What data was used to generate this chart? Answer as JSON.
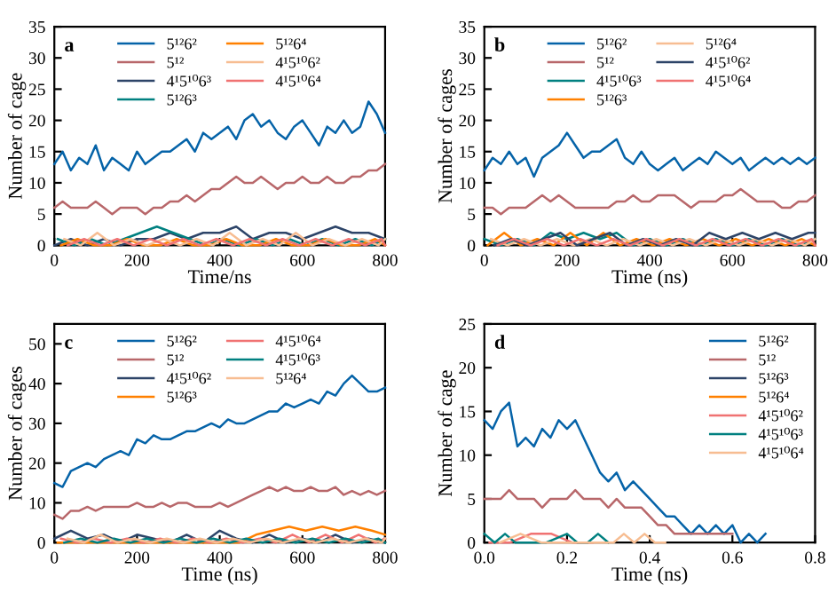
{
  "chart_data": [
    {
      "type": "line",
      "annotations": [
        "a"
      ],
      "xlabel": "Time/ns",
      "ylabel": "Number of cage",
      "xlim": [
        0,
        800
      ],
      "xticks": [
        0,
        200,
        400,
        600,
        800
      ],
      "ylim": [
        0,
        35
      ],
      "yticks": [
        0,
        5,
        10,
        15,
        20,
        25,
        30,
        35
      ],
      "grid": false,
      "legend": "top",
      "x": [
        0,
        20,
        40,
        60,
        80,
        100,
        120,
        140,
        160,
        180,
        200,
        220,
        240,
        260,
        280,
        300,
        320,
        340,
        360,
        380,
        400,
        420,
        440,
        460,
        480,
        500,
        520,
        540,
        560,
        580,
        600,
        620,
        640,
        660,
        680,
        700,
        720,
        740,
        760,
        780,
        800
      ],
      "series": [
        {
          "name": "5¹²6²",
          "color": "#0563a8",
          "values": [
            13,
            15,
            12,
            14,
            13,
            16,
            12,
            14,
            13,
            12,
            15,
            13,
            14,
            15,
            15,
            16,
            17,
            15,
            18,
            17,
            18,
            19,
            17,
            20,
            21,
            19,
            20,
            18,
            17,
            19,
            20,
            18,
            16,
            19,
            18,
            20,
            18,
            19,
            23,
            21,
            18
          ]
        },
        {
          "name": "5¹²",
          "color": "#b8676a",
          "values": [
            6,
            7,
            6,
            6,
            6,
            7,
            6,
            5,
            6,
            6,
            6,
            5,
            6,
            6,
            7,
            7,
            8,
            7,
            8,
            9,
            9,
            10,
            11,
            10,
            10,
            11,
            10,
            9,
            10,
            10,
            11,
            10,
            10,
            11,
            10,
            10,
            11,
            11,
            12,
            12,
            13
          ]
        },
        {
          "name": "4¹5¹⁰6³",
          "color": "#2d4468",
          "x": [
            0,
            40,
            80,
            120,
            160,
            200,
            240,
            280,
            320,
            360,
            400,
            440,
            480,
            520,
            560,
            600,
            640,
            680,
            720,
            760,
            800
          ],
          "values": [
            0,
            1,
            0,
            1,
            0,
            1,
            1,
            2,
            1,
            2,
            2,
            3,
            1,
            2,
            2,
            1,
            2,
            3,
            2,
            2,
            1
          ]
        },
        {
          "name": "5¹²6³",
          "color": "#008080",
          "x": [
            8,
            48,
            88,
            128,
            168,
            208,
            248,
            288,
            328,
            368,
            408,
            448,
            488,
            528,
            568,
            608,
            648,
            688,
            728,
            768,
            800
          ],
          "values": [
            1,
            0,
            1,
            0,
            1,
            2,
            3,
            2,
            1,
            0,
            1,
            0,
            1,
            0,
            1,
            0,
            1,
            0,
            1,
            0,
            1
          ]
        },
        {
          "name": "5¹²6⁴",
          "color": "#ff8000",
          "x": [
            16,
            56,
            96,
            136,
            176,
            216,
            256,
            296,
            336,
            376,
            416,
            456,
            496,
            536,
            576,
            616,
            656,
            696,
            736,
            776,
            800
          ],
          "values": [
            0,
            1,
            0,
            0,
            1,
            0,
            0,
            1,
            0,
            0,
            1,
            0,
            0,
            1,
            0,
            0,
            1,
            0,
            0,
            1,
            0
          ]
        },
        {
          "name": "4¹5¹⁰6²",
          "color": "#f7bd92",
          "x": [
            24,
            64,
            104,
            144,
            184,
            224,
            264,
            304,
            344,
            384,
            424,
            464,
            504,
            544,
            584,
            624,
            664,
            704,
            744,
            784,
            800
          ],
          "values": [
            1,
            0,
            2,
            0,
            1,
            0,
            1,
            0,
            1,
            0,
            2,
            0,
            1,
            0,
            2,
            0,
            1,
            0,
            1,
            0,
            1
          ]
        },
        {
          "name": "4¹5¹⁰6⁴",
          "color": "#f07272",
          "x": [
            32,
            72,
            112,
            152,
            192,
            232,
            272,
            312,
            352,
            392,
            432,
            472,
            512,
            552,
            592,
            632,
            672,
            712,
            752,
            792,
            800
          ],
          "values": [
            0,
            1,
            0,
            1,
            0,
            1,
            0,
            1,
            0,
            1,
            0,
            1,
            0,
            1,
            0,
            1,
            0,
            1,
            0,
            1,
            0
          ]
        }
      ]
    },
    {
      "type": "line",
      "annotations": [
        "b"
      ],
      "xlabel": "Time (ns)",
      "ylabel": "Number of cages",
      "xlim": [
        0,
        800
      ],
      "xticks": [
        0,
        200,
        400,
        600,
        800
      ],
      "ylim": [
        0,
        35
      ],
      "yticks": [
        0,
        5,
        10,
        15,
        20,
        25,
        30,
        35
      ],
      "grid": false,
      "legend": "top",
      "x": [
        0,
        20,
        40,
        60,
        80,
        100,
        120,
        140,
        160,
        180,
        200,
        220,
        240,
        260,
        280,
        300,
        320,
        340,
        360,
        380,
        400,
        420,
        440,
        460,
        480,
        500,
        520,
        540,
        560,
        580,
        600,
        620,
        640,
        660,
        680,
        700,
        720,
        740,
        760,
        780,
        800
      ],
      "series": [
        {
          "name": "5¹²6²",
          "color": "#0563a8",
          "values": [
            12,
            14,
            13,
            15,
            13,
            14,
            11,
            14,
            15,
            16,
            18,
            16,
            14,
            15,
            15,
            16,
            17,
            14,
            13,
            15,
            13,
            12,
            13,
            14,
            12,
            13,
            14,
            13,
            15,
            14,
            13,
            14,
            12,
            13,
            14,
            13,
            14,
            13,
            14,
            13,
            14
          ]
        },
        {
          "name": "5¹²",
          "color": "#b8676a",
          "values": [
            6,
            6,
            5,
            6,
            6,
            6,
            7,
            8,
            7,
            8,
            7,
            6,
            6,
            6,
            6,
            6,
            7,
            7,
            8,
            7,
            7,
            8,
            8,
            8,
            7,
            6,
            7,
            7,
            7,
            8,
            8,
            9,
            8,
            7,
            7,
            7,
            6,
            6,
            7,
            7,
            8
          ]
        },
        {
          "name": "4¹5¹⁰6³",
          "color": "#008080",
          "x": [
            0,
            40,
            80,
            120,
            160,
            200,
            240,
            280,
            320,
            360,
            400,
            440,
            480,
            520,
            560,
            600,
            640,
            680,
            720,
            760,
            800
          ],
          "values": [
            1,
            0,
            1,
            0,
            2,
            1,
            2,
            1,
            2,
            0,
            1,
            0,
            1,
            0,
            1,
            0,
            1,
            0,
            1,
            0,
            1
          ]
        },
        {
          "name": "5¹²6³",
          "color": "#ff8000",
          "x": [
            8,
            48,
            88,
            128,
            168,
            208,
            248,
            288,
            328,
            368,
            408,
            448,
            488,
            528,
            568,
            608,
            648,
            688,
            728,
            768,
            800
          ],
          "values": [
            0,
            2,
            0,
            1,
            0,
            2,
            0,
            2,
            0,
            1,
            0,
            1,
            0,
            1,
            0,
            1,
            0,
            1,
            0,
            1,
            0
          ]
        },
        {
          "name": "5¹²6⁴",
          "color": "#f7bd92",
          "x": [
            16,
            56,
            96,
            136,
            176,
            216,
            256,
            296,
            336,
            376,
            416,
            456,
            496,
            536,
            576,
            616,
            656,
            696,
            736,
            776,
            800
          ],
          "values": [
            1,
            0,
            1,
            0,
            1,
            0,
            1,
            0,
            1,
            0,
            1,
            0,
            1,
            0,
            1,
            0,
            1,
            0,
            1,
            0,
            1
          ]
        },
        {
          "name": "4¹5¹⁰6²",
          "color": "#2d4468",
          "x": [
            24,
            64,
            104,
            144,
            184,
            224,
            264,
            304,
            344,
            384,
            424,
            464,
            504,
            544,
            584,
            624,
            664,
            704,
            744,
            784,
            800
          ],
          "values": [
            0,
            1,
            0,
            1,
            2,
            0,
            1,
            2,
            0,
            1,
            0,
            1,
            0,
            2,
            1,
            2,
            1,
            2,
            1,
            2,
            2
          ]
        },
        {
          "name": "4¹5¹⁰6⁴",
          "color": "#f07272",
          "x": [
            32,
            72,
            112,
            152,
            192,
            232,
            272,
            312,
            352,
            392,
            432,
            472,
            512,
            552,
            592,
            632,
            672,
            712,
            752,
            792,
            800
          ],
          "values": [
            0,
            1,
            0,
            1,
            0,
            1,
            0,
            1,
            0,
            1,
            0,
            1,
            0,
            1,
            0,
            1,
            0,
            1,
            0,
            1,
            0
          ]
        }
      ]
    },
    {
      "type": "line",
      "annotations": [
        "c"
      ],
      "xlabel": "Time (ns)",
      "ylabel": "Number of cages",
      "xlim": [
        0,
        800
      ],
      "xticks": [
        0,
        200,
        400,
        600,
        800
      ],
      "ylim": [
        0,
        55
      ],
      "yticks": [
        0,
        10,
        20,
        30,
        40,
        50
      ],
      "grid": false,
      "legend": "top",
      "x": [
        0,
        20,
        40,
        60,
        80,
        100,
        120,
        140,
        160,
        180,
        200,
        220,
        240,
        260,
        280,
        300,
        320,
        340,
        360,
        380,
        400,
        420,
        440,
        460,
        480,
        500,
        520,
        540,
        560,
        580,
        600,
        620,
        640,
        660,
        680,
        700,
        720,
        740,
        760,
        780,
        800
      ],
      "series": [
        {
          "name": "5¹²6²",
          "color": "#0563a8",
          "values": [
            15,
            14,
            18,
            19,
            20,
            19,
            21,
            22,
            23,
            22,
            26,
            25,
            27,
            26,
            26,
            27,
            28,
            28,
            29,
            30,
            29,
            31,
            30,
            30,
            31,
            32,
            33,
            33,
            35,
            34,
            35,
            36,
            35,
            38,
            37,
            40,
            42,
            40,
            38,
            38,
            39
          ]
        },
        {
          "name": "5¹²",
          "color": "#b8676a",
          "values": [
            7,
            6,
            8,
            8,
            9,
            8,
            9,
            9,
            9,
            9,
            10,
            9,
            9,
            10,
            9,
            10,
            10,
            9,
            9,
            9,
            10,
            9,
            10,
            11,
            12,
            13,
            14,
            13,
            14,
            13,
            13,
            14,
            13,
            13,
            14,
            12,
            13,
            12,
            13,
            12,
            13
          ]
        },
        {
          "name": "4¹5¹⁰6²",
          "color": "#2d4468",
          "x": [
            0,
            40,
            80,
            120,
            160,
            200,
            240,
            280,
            320,
            360,
            400,
            440,
            480,
            520,
            560,
            600,
            640,
            680,
            720,
            760,
            800
          ],
          "values": [
            1,
            3,
            1,
            2,
            0,
            2,
            1,
            0,
            2,
            0,
            3,
            1,
            0,
            2,
            0,
            1,
            0,
            2,
            0,
            1,
            0
          ]
        },
        {
          "name": "5¹²6³",
          "color": "#ff8000",
          "x": [
            8,
            48,
            88,
            128,
            168,
            208,
            248,
            288,
            328,
            368,
            408,
            448,
            488,
            528,
            568,
            608,
            648,
            688,
            728,
            768,
            800
          ],
          "values": [
            0,
            0,
            0,
            0,
            0,
            0,
            0,
            0,
            0,
            0,
            0,
            0,
            2,
            3,
            4,
            3,
            4,
            3,
            4,
            3,
            2
          ]
        },
        {
          "name": "4¹5¹⁰6⁴",
          "color": "#f07272",
          "x": [
            16,
            56,
            96,
            136,
            176,
            216,
            256,
            296,
            336,
            376,
            416,
            456,
            496,
            536,
            576,
            616,
            656,
            696,
            736,
            776,
            800
          ],
          "values": [
            1,
            0,
            1,
            0,
            1,
            0,
            1,
            0,
            1,
            0,
            1,
            0,
            1,
            0,
            2,
            0,
            2,
            0,
            2,
            0,
            1
          ]
        },
        {
          "name": "4¹5¹⁰6³",
          "color": "#008080",
          "x": [
            24,
            64,
            104,
            144,
            184,
            224,
            264,
            304,
            344,
            384,
            424,
            464,
            504,
            544,
            584,
            624,
            664,
            704,
            744,
            784,
            800
          ],
          "values": [
            0,
            1,
            0,
            1,
            0,
            1,
            0,
            1,
            0,
            1,
            0,
            1,
            0,
            1,
            0,
            1,
            0,
            1,
            0,
            1,
            0
          ]
        },
        {
          "name": "5¹²6⁴",
          "color": "#f7bd92",
          "x": [
            32,
            72,
            112,
            152,
            192,
            232,
            272,
            312,
            352,
            392,
            432,
            472,
            512,
            552,
            592,
            632,
            672,
            712,
            752,
            792,
            800
          ],
          "values": [
            1,
            0,
            2,
            0,
            1,
            0,
            1,
            0,
            1,
            0,
            1,
            0,
            1,
            0,
            1,
            0,
            1,
            0,
            1,
            0,
            1
          ]
        }
      ]
    },
    {
      "type": "line",
      "annotations": [
        "d"
      ],
      "xlabel": "Time (ns)",
      "ylabel": "Number of cage",
      "xlim": [
        0,
        0.8
      ],
      "xticks": [
        {
          "value": 0,
          "label": "0.0"
        },
        {
          "value": 0.2,
          "label": "0.2"
        },
        {
          "value": 0.4,
          "label": "0.4"
        },
        {
          "value": 0.6,
          "label": "0.6"
        },
        {
          "value": 0.8,
          "label": "0.8"
        }
      ],
      "ylim": [
        0,
        25
      ],
      "yticks": [
        0,
        5,
        10,
        15,
        20,
        25
      ],
      "grid": false,
      "legend": "top right",
      "series": [
        {
          "name": "5¹²6²",
          "color": "#0563a8",
          "x": [
            0,
            0.02,
            0.04,
            0.06,
            0.08,
            0.1,
            0.12,
            0.14,
            0.16,
            0.18,
            0.2,
            0.22,
            0.24,
            0.26,
            0.28,
            0.3,
            0.32,
            0.34,
            0.36,
            0.38,
            0.4,
            0.42,
            0.44,
            0.46,
            0.48,
            0.5,
            0.52,
            0.54,
            0.56,
            0.58,
            0.6,
            0.62,
            0.64,
            0.66,
            0.68
          ],
          "values": [
            14,
            13,
            15,
            16,
            11,
            12,
            11,
            13,
            12,
            14,
            13,
            14,
            12,
            10,
            8,
            7,
            8,
            6,
            7,
            6,
            5,
            4,
            3,
            3,
            2,
            1,
            2,
            1,
            2,
            1,
            2,
            0,
            1,
            0,
            1
          ]
        },
        {
          "name": "5¹²",
          "color": "#b8676a",
          "x": [
            0,
            0.02,
            0.04,
            0.06,
            0.08,
            0.1,
            0.12,
            0.14,
            0.16,
            0.18,
            0.2,
            0.22,
            0.24,
            0.26,
            0.28,
            0.3,
            0.32,
            0.34,
            0.36,
            0.38,
            0.4,
            0.42,
            0.44,
            0.46,
            0.48,
            0.5,
            0.52,
            0.54,
            0.56,
            0.58,
            0.6
          ],
          "values": [
            5,
            5,
            5,
            6,
            5,
            5,
            5,
            4,
            5,
            5,
            5,
            6,
            5,
            5,
            5,
            4,
            5,
            4,
            4,
            4,
            3,
            2,
            2,
            1,
            1,
            1,
            1,
            1,
            1,
            1,
            1
          ]
        },
        {
          "name": "5¹²6³",
          "color": "#2d4468"
        },
        {
          "name": "5¹²6⁴",
          "color": "#ff8000"
        },
        {
          "name": "4¹5¹⁰6²",
          "color": "#f07272",
          "x": [
            0.0125,
            0.0625,
            0.1125,
            0.1625,
            0.2125,
            0.2625
          ],
          "values": [
            0,
            0,
            1,
            1,
            0,
            0
          ]
        },
        {
          "name": "4¹5¹⁰6³",
          "color": "#008080",
          "x": [
            0,
            0.025,
            0.05,
            0.075,
            0.1,
            0.15,
            0.2,
            0.225,
            0.25,
            0.275,
            0.3
          ],
          "values": [
            1,
            0,
            1,
            0,
            0,
            0,
            1,
            0,
            0,
            1,
            0
          ]
        },
        {
          "name": "4¹5¹⁰6⁴",
          "color": "#f7bd92",
          "x": [
            0.0375,
            0.0875,
            0.1375,
            0.3125,
            0.3375,
            0.3625,
            0.3875,
            0.4125,
            0.4375
          ],
          "values": [
            0,
            1,
            0,
            0,
            1,
            0,
            1,
            0,
            0
          ]
        }
      ]
    }
  ]
}
